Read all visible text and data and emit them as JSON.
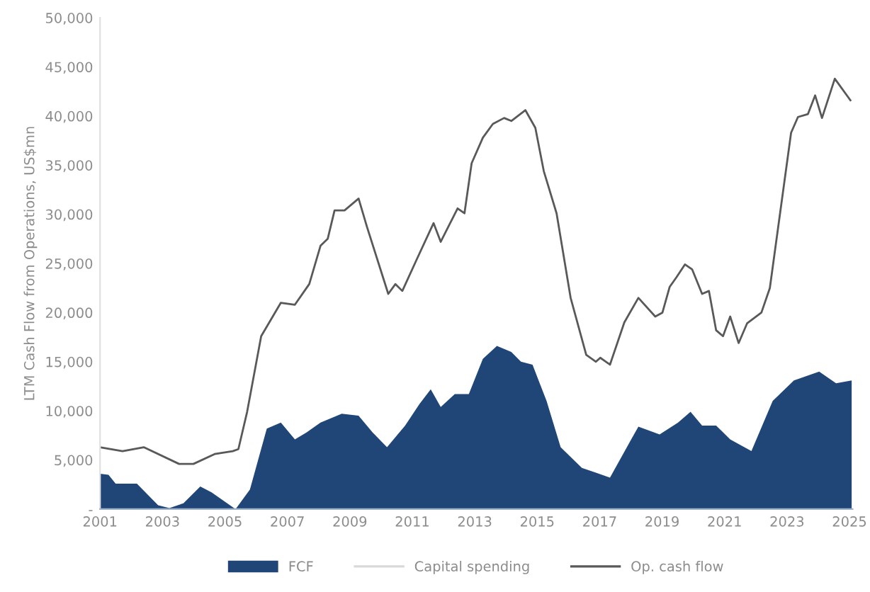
{
  "chart_data": {
    "type": "area",
    "ylabel": "LTM Cash Flow from Operations, US$mn",
    "xlim": [
      2001,
      2025.1
    ],
    "xticks": [
      2001,
      2003,
      2005,
      2007,
      2009,
      2011,
      2013,
      2015,
      2017,
      2019,
      2021,
      2023,
      2025
    ],
    "ylim": [
      0,
      50000
    ],
    "yticks": [
      {
        "value": 0,
        "label": "-"
      },
      {
        "value": 5000,
        "label": "5,000"
      },
      {
        "value": 10000,
        "label": "10,000"
      },
      {
        "value": 15000,
        "label": "15,000"
      },
      {
        "value": 20000,
        "label": "20,000"
      },
      {
        "value": 25000,
        "label": "25,000"
      },
      {
        "value": 30000,
        "label": "30,000"
      },
      {
        "value": 35000,
        "label": "35,000"
      },
      {
        "value": 40000,
        "label": "40,000"
      },
      {
        "value": 45000,
        "label": "45,000"
      },
      {
        "value": 50000,
        "label": "50,000"
      }
    ],
    "grid": false,
    "legend": "bottom",
    "series": [
      {
        "name": "FCF",
        "color": "#1f4677",
        "x": [
          2001.0,
          2001.27,
          2001.5,
          2002.18,
          2002.86,
          2003.22,
          2003.67,
          2004.21,
          2004.57,
          2005.34,
          2005.8,
          2006.34,
          2006.79,
          2007.24,
          2007.61,
          2008.06,
          2008.74,
          2009.28,
          2009.73,
          2010.19,
          2010.77,
          2011.23,
          2011.59,
          2011.91,
          2012.36,
          2012.81,
          2013.26,
          2013.71,
          2014.17,
          2014.48,
          2014.85,
          2015.3,
          2015.75,
          2016.43,
          2016.88,
          2017.33,
          2018.01,
          2018.24,
          2018.92,
          2019.51,
          2019.91,
          2020.28,
          2020.73,
          2021.18,
          2021.86,
          2022.54,
          2023.22,
          2024.03,
          2024.57,
          2025.07
        ],
        "values": [
          3600,
          3500,
          2600,
          2600,
          400,
          100,
          600,
          2300,
          1700,
          0,
          2000,
          8200,
          8800,
          7100,
          7800,
          8800,
          9700,
          9500,
          7800,
          6300,
          8500,
          10700,
          12200,
          10400,
          11700,
          11700,
          15300,
          16600,
          16000,
          15000,
          14700,
          11000,
          6300,
          4200,
          3700,
          3200,
          7100,
          8400,
          7600,
          8800,
          9900,
          8500,
          8500,
          7100,
          5900,
          11000,
          13100,
          14000,
          12800,
          13100
        ]
      },
      {
        "name": "Capital spending",
        "type": "line",
        "color": "#d9d9d9"
      },
      {
        "name": "Op. cash flow",
        "type": "line",
        "color": "#595959",
        "x": [
          2001.0,
          2001.72,
          2002.4,
          2003.53,
          2003.99,
          2004.67,
          2005.25,
          2005.43,
          2005.71,
          2006.16,
          2006.79,
          2007.24,
          2007.7,
          2008.06,
          2008.29,
          2008.51,
          2008.83,
          2009.28,
          2009.55,
          2010.23,
          2010.46,
          2010.68,
          2011.14,
          2011.68,
          2011.91,
          2012.45,
          2012.67,
          2012.9,
          2013.26,
          2013.58,
          2013.94,
          2014.17,
          2014.62,
          2014.94,
          2015.21,
          2015.62,
          2016.07,
          2016.57,
          2016.88,
          2017.02,
          2017.33,
          2017.79,
          2018.24,
          2018.78,
          2019.01,
          2019.24,
          2019.46,
          2019.73,
          2019.96,
          2020.28,
          2020.5,
          2020.73,
          2020.95,
          2021.18,
          2021.45,
          2021.72,
          2022.18,
          2022.45,
          2023.13,
          2023.35,
          2023.67,
          2023.9,
          2024.12,
          2024.53,
          2025.03
        ],
        "values": [
          6300,
          5900,
          6300,
          4600,
          4600,
          5600,
          5900,
          6100,
          9900,
          17600,
          21000,
          20800,
          22900,
          26800,
          27500,
          30400,
          30400,
          31600,
          28700,
          21900,
          22900,
          22200,
          25400,
          29100,
          27200,
          30600,
          30100,
          35200,
          37800,
          39200,
          39800,
          39500,
          40600,
          38800,
          34400,
          30100,
          21500,
          15700,
          15000,
          15400,
          14700,
          19000,
          21500,
          19600,
          20000,
          22600,
          23600,
          24900,
          24400,
          21900,
          22200,
          18200,
          17600,
          19600,
          16900,
          18900,
          20000,
          22500,
          38300,
          39900,
          40200,
          42100,
          39800,
          43800,
          41600
        ]
      }
    ]
  }
}
